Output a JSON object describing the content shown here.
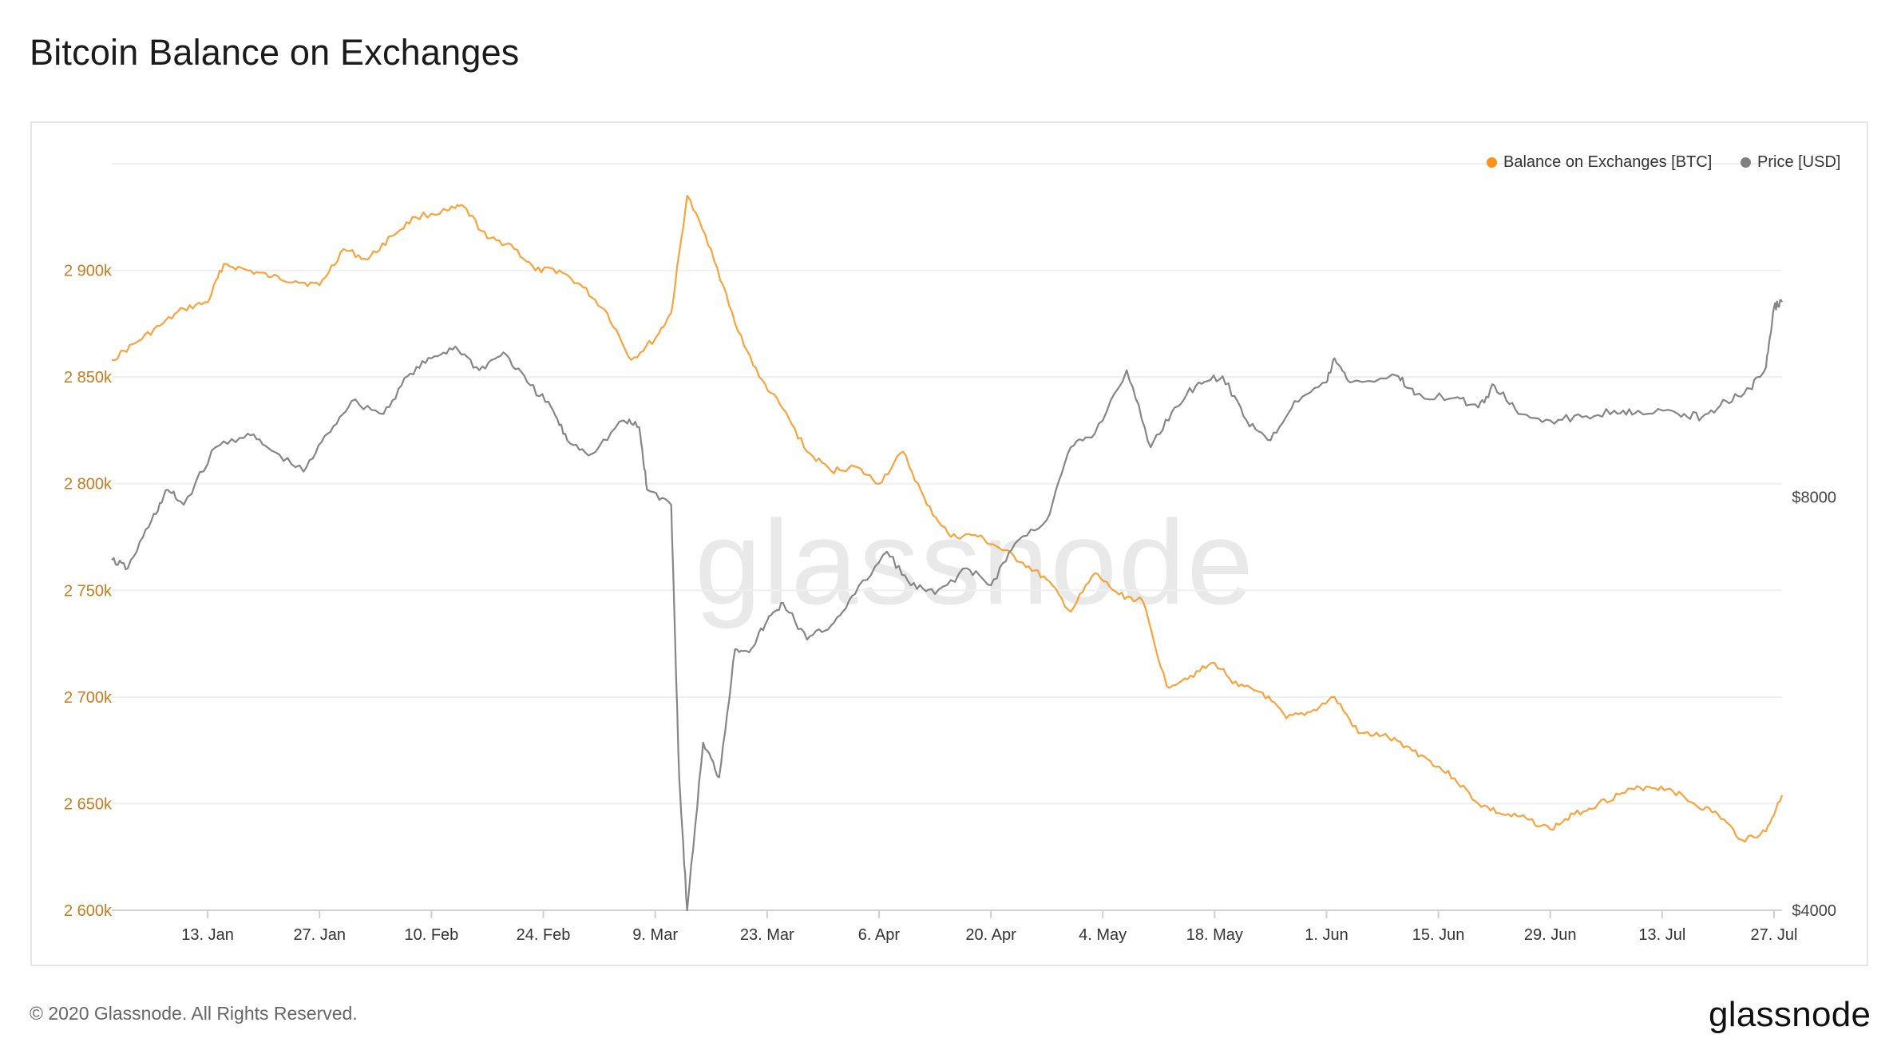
{
  "header": {
    "title": "Bitcoin Balance on Exchanges"
  },
  "footer": {
    "copyright": "© 2020 Glassnode. All Rights Reserved.",
    "logo": "glassnode"
  },
  "watermark": "glassnode",
  "legend": {
    "balance_label": "Balance on Exchanges [BTC]",
    "price_label": "Price [USD]"
  },
  "colors": {
    "balance": "#f7931a",
    "price": "#808080",
    "left_axis_text": "#c97a1e",
    "grid": "#efefef"
  },
  "chart_data": {
    "type": "line",
    "title": "Bitcoin Balance on Exchanges",
    "x_range": [
      "2020-01-01",
      "2020-07-28"
    ],
    "x_ticks": [
      "13. Jan",
      "27. Jan",
      "10. Feb",
      "24. Feb",
      "9. Mar",
      "23. Mar",
      "6. Apr",
      "20. Apr",
      "4. May",
      "18. May",
      "1. Jun",
      "15. Jun",
      "29. Jun",
      "13. Jul",
      "27. Jul"
    ],
    "y_left": {
      "label": "",
      "ticks": [
        "2 600k",
        "2 650k",
        "2 700k",
        "2 750k",
        "2 800k",
        "2 850k",
        "2 900k"
      ],
      "range": [
        2600000,
        2950000
      ]
    },
    "y_right": {
      "label": "",
      "scale": "log",
      "ticks": [
        "$4000",
        "$8000"
      ],
      "range": [
        4000,
        14000
      ]
    },
    "series": [
      {
        "name": "Balance on Exchanges [BTC]",
        "axis": "left",
        "points": [
          [
            "2020-01-01",
            2858000
          ],
          [
            "2020-01-04",
            2866000
          ],
          [
            "2020-01-07",
            2874000
          ],
          [
            "2020-01-10",
            2882000
          ],
          [
            "2020-01-13",
            2885000
          ],
          [
            "2020-01-15",
            2903000
          ],
          [
            "2020-01-18",
            2900000
          ],
          [
            "2020-01-21",
            2897000
          ],
          [
            "2020-01-24",
            2895000
          ],
          [
            "2020-01-27",
            2893000
          ],
          [
            "2020-01-30",
            2910000
          ],
          [
            "2020-02-02",
            2905000
          ],
          [
            "2020-02-05",
            2916000
          ],
          [
            "2020-02-08",
            2925000
          ],
          [
            "2020-02-12",
            2928000
          ],
          [
            "2020-02-14",
            2930000
          ],
          [
            "2020-02-17",
            2915000
          ],
          [
            "2020-02-20",
            2912000
          ],
          [
            "2020-02-23",
            2900000
          ],
          [
            "2020-02-26",
            2900000
          ],
          [
            "2020-02-29",
            2892000
          ],
          [
            "2020-03-03",
            2880000
          ],
          [
            "2020-03-06",
            2858000
          ],
          [
            "2020-03-09",
            2868000
          ],
          [
            "2020-03-11",
            2880000
          ],
          [
            "2020-03-13",
            2935000
          ],
          [
            "2020-03-16",
            2910000
          ],
          [
            "2020-03-19",
            2875000
          ],
          [
            "2020-03-22",
            2850000
          ],
          [
            "2020-03-25",
            2835000
          ],
          [
            "2020-03-28",
            2815000
          ],
          [
            "2020-03-31",
            2806000
          ],
          [
            "2020-04-03",
            2808000
          ],
          [
            "2020-04-06",
            2800000
          ],
          [
            "2020-04-09",
            2815000
          ],
          [
            "2020-04-12",
            2790000
          ],
          [
            "2020-04-15",
            2775000
          ],
          [
            "2020-04-18",
            2776000
          ],
          [
            "2020-04-21",
            2770000
          ],
          [
            "2020-04-24",
            2763000
          ],
          [
            "2020-04-27",
            2755000
          ],
          [
            "2020-04-30",
            2740000
          ],
          [
            "2020-05-03",
            2758000
          ],
          [
            "2020-05-06",
            2748000
          ],
          [
            "2020-05-09",
            2745000
          ],
          [
            "2020-05-12",
            2705000
          ],
          [
            "2020-05-15",
            2710000
          ],
          [
            "2020-05-18",
            2716000
          ],
          [
            "2020-05-21",
            2705000
          ],
          [
            "2020-05-24",
            2702000
          ],
          [
            "2020-05-27",
            2690000
          ],
          [
            "2020-05-30",
            2693000
          ],
          [
            "2020-06-02",
            2700000
          ],
          [
            "2020-06-05",
            2683000
          ],
          [
            "2020-06-08",
            2682000
          ],
          [
            "2020-06-11",
            2677000
          ],
          [
            "2020-06-14",
            2670000
          ],
          [
            "2020-06-17",
            2662000
          ],
          [
            "2020-06-20",
            2650000
          ],
          [
            "2020-06-23",
            2645000
          ],
          [
            "2020-06-26",
            2643000
          ],
          [
            "2020-06-29",
            2638000
          ],
          [
            "2020-07-02",
            2645000
          ],
          [
            "2020-07-05",
            2650000
          ],
          [
            "2020-07-08",
            2655000
          ],
          [
            "2020-07-11",
            2658000
          ],
          [
            "2020-07-14",
            2657000
          ],
          [
            "2020-07-17",
            2650000
          ],
          [
            "2020-07-20",
            2645000
          ],
          [
            "2020-07-23",
            2633000
          ],
          [
            "2020-07-26",
            2637000
          ],
          [
            "2020-07-28",
            2654000
          ]
        ]
      },
      {
        "name": "Price [USD]",
        "axis": "right",
        "points": [
          [
            "2020-01-01",
            7200
          ],
          [
            "2020-01-03",
            7100
          ],
          [
            "2020-01-06",
            7700
          ],
          [
            "2020-01-08",
            8100
          ],
          [
            "2020-01-10",
            7900
          ],
          [
            "2020-01-14",
            8700
          ],
          [
            "2020-01-18",
            8900
          ],
          [
            "2020-01-21",
            8650
          ],
          [
            "2020-01-25",
            8350
          ],
          [
            "2020-01-28",
            8900
          ],
          [
            "2020-01-31",
            9400
          ],
          [
            "2020-02-04",
            9200
          ],
          [
            "2020-02-07",
            9800
          ],
          [
            "2020-02-10",
            10100
          ],
          [
            "2020-02-13",
            10300
          ],
          [
            "2020-02-16",
            9900
          ],
          [
            "2020-02-19",
            10200
          ],
          [
            "2020-02-22",
            9700
          ],
          [
            "2020-02-25",
            9300
          ],
          [
            "2020-02-27",
            8800
          ],
          [
            "2020-03-01",
            8600
          ],
          [
            "2020-03-05",
            9100
          ],
          [
            "2020-03-07",
            9000
          ],
          [
            "2020-03-08",
            8100
          ],
          [
            "2020-03-11",
            7900
          ],
          [
            "2020-03-12",
            5000
          ],
          [
            "2020-03-13",
            4000
          ],
          [
            "2020-03-15",
            5300
          ],
          [
            "2020-03-17",
            5000
          ],
          [
            "2020-03-19",
            6200
          ],
          [
            "2020-03-21",
            6200
          ],
          [
            "2020-03-23",
            6500
          ],
          [
            "2020-03-25",
            6700
          ],
          [
            "2020-03-28",
            6300
          ],
          [
            "2020-03-31",
            6450
          ],
          [
            "2020-04-03",
            6800
          ],
          [
            "2020-04-07",
            7300
          ],
          [
            "2020-04-10",
            6900
          ],
          [
            "2020-04-13",
            6800
          ],
          [
            "2020-04-17",
            7100
          ],
          [
            "2020-04-20",
            6900
          ],
          [
            "2020-04-23",
            7400
          ],
          [
            "2020-04-27",
            7700
          ],
          [
            "2020-04-30",
            8700
          ],
          [
            "2020-05-03",
            8900
          ],
          [
            "2020-05-07",
            9900
          ],
          [
            "2020-05-10",
            8700
          ],
          [
            "2020-05-13",
            9300
          ],
          [
            "2020-05-16",
            9700
          ],
          [
            "2020-05-19",
            9800
          ],
          [
            "2020-05-22",
            9100
          ],
          [
            "2020-05-25",
            8800
          ],
          [
            "2020-05-28",
            9400
          ],
          [
            "2020-06-01",
            9700
          ],
          [
            "2020-06-02",
            10100
          ],
          [
            "2020-06-04",
            9700
          ],
          [
            "2020-06-10",
            9800
          ],
          [
            "2020-06-12",
            9500
          ],
          [
            "2020-06-17",
            9450
          ],
          [
            "2020-06-20",
            9300
          ],
          [
            "2020-06-22",
            9650
          ],
          [
            "2020-06-25",
            9200
          ],
          [
            "2020-06-29",
            9100
          ],
          [
            "2020-07-03",
            9150
          ],
          [
            "2020-07-07",
            9250
          ],
          [
            "2020-07-10",
            9250
          ],
          [
            "2020-07-15",
            9200
          ],
          [
            "2020-07-18",
            9150
          ],
          [
            "2020-07-21",
            9400
          ],
          [
            "2020-07-24",
            9600
          ],
          [
            "2020-07-26",
            9950
          ],
          [
            "2020-07-27",
            11000
          ],
          [
            "2020-07-28",
            11100
          ]
        ]
      }
    ],
    "grid": "horizontal",
    "legend_position": "top-right"
  }
}
